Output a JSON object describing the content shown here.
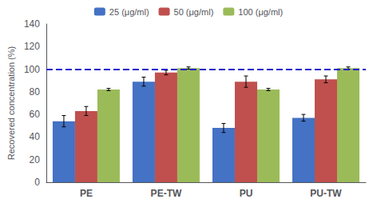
{
  "chart_data": {
    "type": "bar",
    "categories": [
      "PE",
      "PE-TW",
      "PU",
      "PU-TW"
    ],
    "series": [
      {
        "name": "25 (μg/ml)",
        "color": "#4472C4",
        "values": [
          54,
          89,
          48,
          57
        ],
        "errors": [
          5,
          4,
          4,
          3
        ]
      },
      {
        "name": "50 (μg/ml)",
        "color": "#C0504D",
        "values": [
          63,
          97,
          89,
          91
        ],
        "errors": [
          4,
          2,
          5,
          3
        ]
      },
      {
        "name": "100 (μg/ml)",
        "color": "#9BBB59",
        "values": [
          82,
          101,
          82,
          101
        ],
        "errors": [
          1,
          1,
          1,
          1
        ]
      }
    ],
    "ylabel": "Recovered concentration (%)",
    "ylim": [
      0,
      140
    ],
    "yticks": [
      0,
      20,
      40,
      60,
      80,
      100,
      120,
      140
    ],
    "reference_line": {
      "value": 100,
      "color": "#2222CC",
      "line_style": "dashed"
    },
    "legend": "top",
    "grid": false
  }
}
